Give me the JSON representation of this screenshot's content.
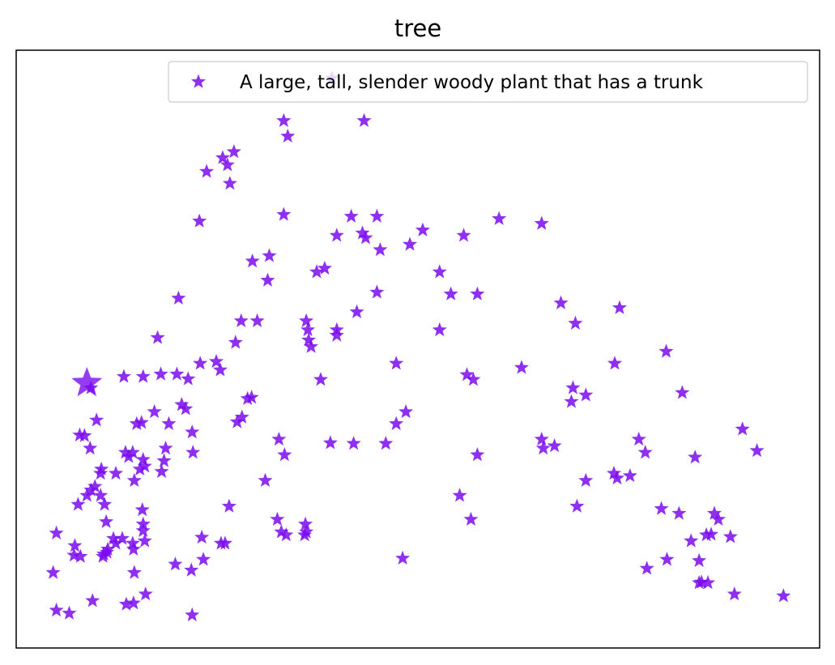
{
  "chart_data": {
    "type": "scatter",
    "title": "tree",
    "xlabel": "",
    "ylabel": "",
    "xlim": [
      0,
      100
    ],
    "ylim": [
      0,
      100
    ],
    "xticks": [],
    "yticks": [],
    "grid": false,
    "legend_position": "top-right",
    "marker": "star",
    "colors": {
      "marker": "#7a0af0",
      "frame": "#000000"
    },
    "series": [
      {
        "name": "A large, tall, slender woody plant that has a trunk",
        "highlight": [
          8.8,
          44.3
        ],
        "points": [
          [
            39.3,
            95.3
          ],
          [
            33.3,
            88.2
          ],
          [
            43.3,
            88.2
          ],
          [
            33.8,
            85.6
          ],
          [
            27.1,
            83.0
          ],
          [
            25.7,
            82.0
          ],
          [
            26.3,
            80.8
          ],
          [
            23.7,
            79.7
          ],
          [
            26.6,
            77.7
          ],
          [
            33.3,
            72.5
          ],
          [
            41.7,
            72.2
          ],
          [
            44.9,
            72.2
          ],
          [
            60.1,
            71.8
          ],
          [
            65.4,
            71.0
          ],
          [
            22.8,
            71.4
          ],
          [
            50.6,
            69.9
          ],
          [
            43.1,
            69.4
          ],
          [
            43.5,
            68.6
          ],
          [
            39.9,
            69.0
          ],
          [
            55.7,
            69.0
          ],
          [
            49.0,
            67.5
          ],
          [
            45.3,
            66.6
          ],
          [
            31.5,
            65.6
          ],
          [
            29.4,
            64.7
          ],
          [
            38.4,
            63.5
          ],
          [
            37.4,
            62.9
          ],
          [
            52.7,
            62.9
          ],
          [
            31.3,
            61.5
          ],
          [
            44.9,
            59.5
          ],
          [
            54.1,
            59.2
          ],
          [
            57.4,
            59.2
          ],
          [
            20.2,
            58.5
          ],
          [
            67.8,
            57.7
          ],
          [
            75.1,
            56.9
          ],
          [
            42.4,
            56.2
          ],
          [
            28.0,
            54.7
          ],
          [
            30.0,
            54.7
          ],
          [
            36.1,
            54.7
          ],
          [
            69.6,
            54.3
          ],
          [
            52.7,
            53.2
          ],
          [
            36.3,
            53.2
          ],
          [
            39.9,
            53.2
          ],
          [
            39.9,
            52.3
          ],
          [
            17.6,
            51.9
          ],
          [
            36.4,
            51.5
          ],
          [
            27.3,
            51.1
          ],
          [
            36.7,
            50.4
          ],
          [
            80.9,
            49.6
          ],
          [
            22.9,
            47.6
          ],
          [
            24.9,
            47.9
          ],
          [
            47.3,
            47.6
          ],
          [
            74.5,
            47.6
          ],
          [
            62.9,
            46.9
          ],
          [
            25.4,
            46.5
          ],
          [
            56.1,
            45.7
          ],
          [
            18.0,
            45.8
          ],
          [
            20.0,
            45.8
          ],
          [
            21.4,
            45.0
          ],
          [
            13.4,
            45.4
          ],
          [
            15.8,
            45.4
          ],
          [
            37.9,
            44.9
          ],
          [
            56.9,
            44.9
          ],
          [
            9.3,
            43.5
          ],
          [
            69.3,
            43.5
          ],
          [
            82.9,
            42.7
          ],
          [
            70.9,
            42.3
          ],
          [
            28.8,
            41.7
          ],
          [
            29.3,
            41.9
          ],
          [
            69.1,
            41.2
          ],
          [
            20.6,
            40.7
          ],
          [
            21.1,
            40.0
          ],
          [
            17.2,
            39.5
          ],
          [
            48.5,
            39.5
          ],
          [
            28.1,
            38.6
          ],
          [
            27.5,
            37.8
          ],
          [
            10.0,
            38.1
          ],
          [
            15.6,
            37.7
          ],
          [
            15.0,
            37.5
          ],
          [
            19.0,
            37.5
          ],
          [
            47.3,
            37.5
          ],
          [
            90.4,
            36.6
          ],
          [
            21.9,
            36.1
          ],
          [
            7.9,
            35.6
          ],
          [
            8.5,
            35.5
          ],
          [
            32.7,
            34.9
          ],
          [
            65.4,
            34.9
          ],
          [
            77.5,
            34.9
          ],
          [
            39.1,
            34.3
          ],
          [
            42.0,
            34.2
          ],
          [
            46.0,
            34.2
          ],
          [
            67.0,
            33.8
          ],
          [
            65.6,
            33.4
          ],
          [
            92.2,
            33.0
          ],
          [
            9.2,
            33.4
          ],
          [
            18.6,
            33.4
          ],
          [
            13.6,
            32.7
          ],
          [
            14.5,
            32.7
          ],
          [
            22.0,
            32.7
          ],
          [
            33.4,
            32.3
          ],
          [
            78.3,
            32.7
          ],
          [
            57.4,
            32.3
          ],
          [
            84.5,
            31.9
          ],
          [
            14.0,
            32.0
          ],
          [
            15.8,
            31.5
          ],
          [
            18.4,
            31.3
          ],
          [
            16.0,
            30.4
          ],
          [
            15.4,
            29.9
          ],
          [
            10.6,
            29.9
          ],
          [
            12.4,
            29.2
          ],
          [
            10.5,
            29.2
          ],
          [
            18.1,
            29.5
          ],
          [
            74.4,
            29.2
          ],
          [
            76.4,
            28.8
          ],
          [
            31.0,
            28.0
          ],
          [
            70.9,
            28.0
          ],
          [
            14.7,
            28.0
          ],
          [
            74.8,
            28.4
          ],
          [
            9.8,
            27.0
          ],
          [
            9.3,
            26.4
          ],
          [
            8.8,
            25.5
          ],
          [
            10.5,
            25.5
          ],
          [
            55.2,
            25.5
          ],
          [
            7.7,
            24.0
          ],
          [
            11.0,
            24.0
          ],
          [
            26.5,
            23.7
          ],
          [
            69.8,
            23.7
          ],
          [
            80.3,
            23.3
          ],
          [
            15.7,
            23.1
          ],
          [
            82.5,
            22.5
          ],
          [
            86.9,
            22.5
          ],
          [
            32.5,
            21.5
          ],
          [
            87.4,
            21.5
          ],
          [
            56.6,
            21.5
          ],
          [
            11.2,
            21.1
          ],
          [
            15.8,
            20.7
          ],
          [
            36.0,
            20.7
          ],
          [
            15.8,
            19.6
          ],
          [
            33.0,
            19.4
          ],
          [
            36.1,
            19.4
          ],
          [
            5.0,
            19.2
          ],
          [
            33.6,
            18.9
          ],
          [
            35.9,
            18.9
          ],
          [
            86.5,
            19.0
          ],
          [
            85.9,
            18.9
          ],
          [
            88.9,
            18.6
          ],
          [
            23.1,
            18.5
          ],
          [
            13.2,
            18.3
          ],
          [
            12.1,
            18.3
          ],
          [
            16.0,
            17.9
          ],
          [
            14.5,
            17.5
          ],
          [
            84.0,
            17.9
          ],
          [
            25.5,
            17.5
          ],
          [
            12.4,
            17.5
          ],
          [
            26.0,
            17.5
          ],
          [
            11.4,
            16.5
          ],
          [
            14.6,
            16.5
          ],
          [
            7.3,
            17.1
          ],
          [
            11.3,
            16.0
          ],
          [
            10.9,
            15.7
          ],
          [
            7.2,
            15.5
          ],
          [
            8.0,
            15.3
          ],
          [
            10.8,
            15.3
          ],
          [
            48.1,
            15.0
          ],
          [
            23.3,
            14.8
          ],
          [
            81.0,
            14.8
          ],
          [
            85.0,
            14.6
          ],
          [
            19.8,
            14.0
          ],
          [
            78.5,
            13.3
          ],
          [
            21.8,
            13.0
          ],
          [
            4.6,
            12.6
          ],
          [
            14.7,
            12.6
          ],
          [
            85.0,
            10.9
          ],
          [
            85.3,
            11.0
          ],
          [
            86.1,
            10.9
          ],
          [
            89.4,
            9.0
          ],
          [
            95.5,
            8.7
          ],
          [
            16.1,
            9.0
          ],
          [
            9.5,
            7.9
          ],
          [
            14.6,
            7.5
          ],
          [
            13.7,
            7.3
          ],
          [
            5.0,
            6.3
          ],
          [
            6.6,
            5.8
          ],
          [
            21.9,
            5.5
          ]
        ]
      }
    ]
  }
}
